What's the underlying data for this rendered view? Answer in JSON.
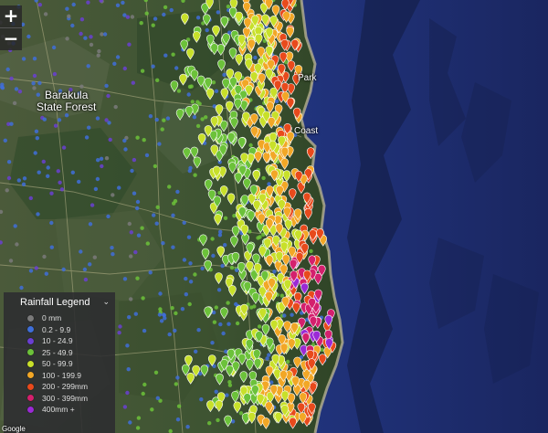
{
  "map": {
    "labels": {
      "barakula": "Barakula\nState Forest",
      "coast": "Coast",
      "park": "Park"
    },
    "attribution": "Google"
  },
  "zoom": {
    "in_label": "+",
    "out_label": "−"
  },
  "legend": {
    "title": "Rainfall Legend",
    "collapse_icon": "chevron-down-icon",
    "items": [
      {
        "label": "0 mm",
        "color": "#7a7a7a"
      },
      {
        "label": "0.2 - 9.9",
        "color": "#3f6fd9"
      },
      {
        "label": "10 - 24.9",
        "color": "#6a3fd1"
      },
      {
        "label": "25 - 49.9",
        "color": "#6cc23a"
      },
      {
        "label": "50 - 99.9",
        "color": "#c8e02a"
      },
      {
        "label": "100 - 199.9",
        "color": "#f2a726"
      },
      {
        "label": "200 - 299mm",
        "color": "#e84a1c"
      },
      {
        "label": "300 - 399mm",
        "color": "#d4206d"
      },
      {
        "label": "400mm +",
        "color": "#9b2ad6"
      }
    ]
  }
}
